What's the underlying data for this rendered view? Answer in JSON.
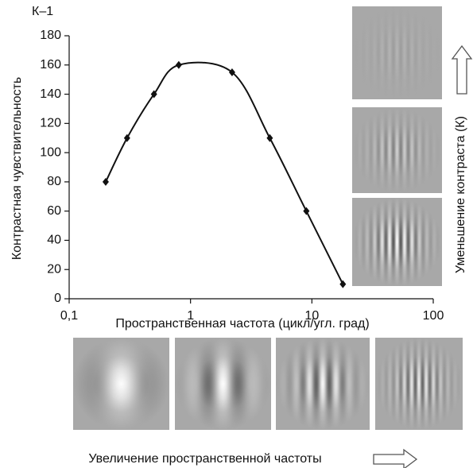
{
  "chart_data": {
    "type": "line",
    "y_unit_label": "К–1",
    "x_label": "Пространственная частота (цикл/угл. град)",
    "y_label": "Контрастная чувствительность",
    "right_label": "Уменьшение контраста (К)",
    "bottom_label": "Увеличение пространственной частоты",
    "x": [
      0.2,
      0.3,
      0.5,
      0.8,
      2.2,
      4.5,
      9,
      18
    ],
    "values": [
      80,
      110,
      140,
      160,
      155,
      110,
      60,
      10
    ],
    "color": "#111111",
    "xscale": "log",
    "xlim": [
      0.1,
      100
    ],
    "xticks": [
      {
        "value": 0.1,
        "label": "0,1"
      },
      1,
      10,
      100
    ],
    "ylim": [
      0,
      180
    ],
    "yticks": [
      0,
      20,
      40,
      60,
      80,
      100,
      120,
      140,
      160,
      180
    ],
    "grid": false
  }
}
